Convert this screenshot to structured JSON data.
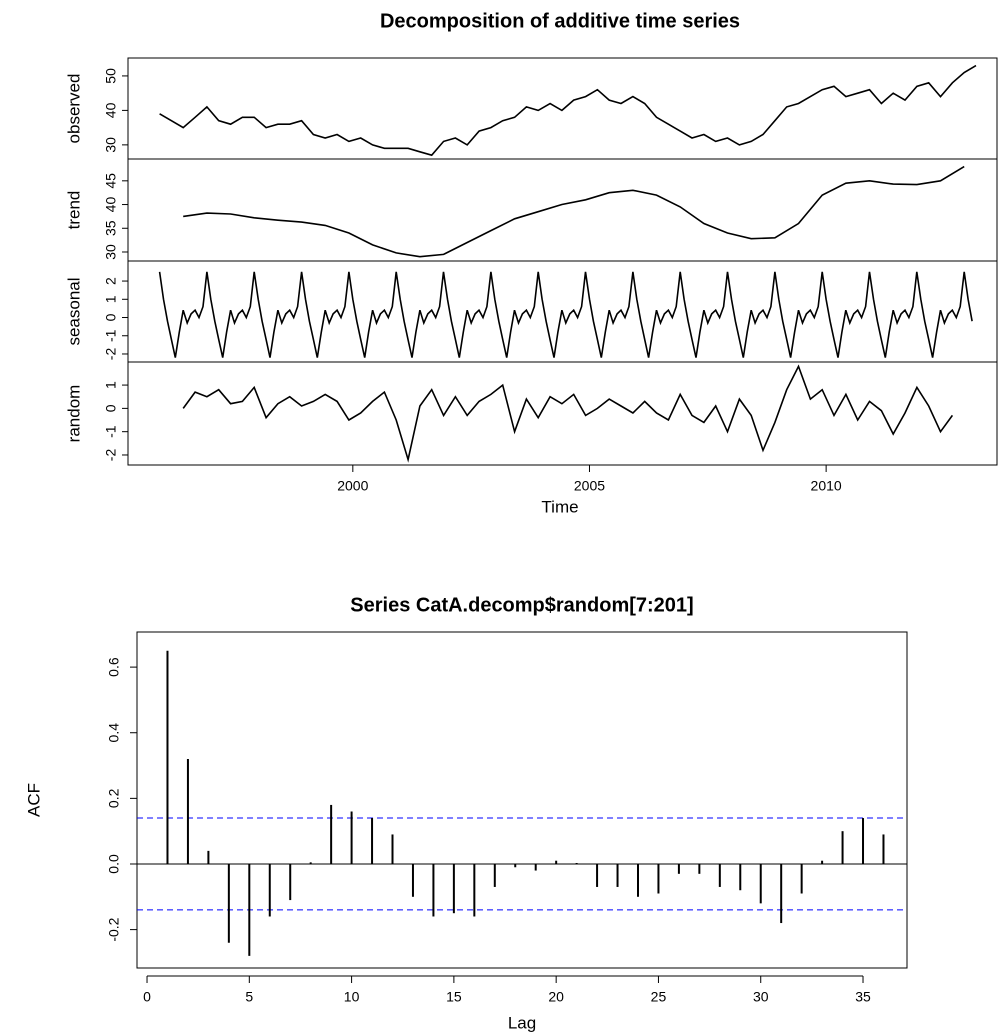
{
  "chart_data": [
    {
      "type": "decomposition",
      "title": "Decomposition of additive time series",
      "xlabel": "Time",
      "xlim": [
        1995.25,
        2013.61
      ],
      "xticks": [
        2000,
        2005,
        2010
      ],
      "color": "#000000",
      "panels": [
        {
          "ylabel": "observed",
          "ylim": [
            25.9,
            55.2
          ],
          "yticks": [
            30,
            40,
            50
          ],
          "x_start": 1995.917,
          "x_step": 0.25,
          "values": [
            39,
            37,
            35,
            38,
            41,
            37,
            36,
            38,
            38,
            35,
            36,
            36,
            37,
            33,
            32,
            33,
            31,
            32,
            30,
            29,
            29,
            29,
            28,
            27,
            31,
            32,
            30,
            34,
            35,
            37,
            38,
            41,
            40,
            42,
            40,
            43,
            44,
            46,
            43,
            42,
            44,
            42,
            38,
            36,
            34,
            32,
            33,
            31,
            32,
            30,
            31,
            33,
            37,
            41,
            42,
            44,
            46,
            47,
            44,
            45,
            46,
            42,
            45,
            43,
            47,
            48,
            44,
            48,
            51,
            53
          ]
        },
        {
          "ylabel": "trend",
          "ylim": [
            28.1,
            49.6
          ],
          "yticks": [
            30,
            35,
            40,
            45
          ],
          "x_start": 1996.417,
          "x_step": 0.5,
          "values": [
            37.5,
            38.2,
            38.0,
            37.2,
            36.7,
            36.3,
            35.6,
            34.0,
            31.5,
            29.8,
            29.0,
            29.5,
            32.0,
            34.5,
            37.0,
            38.5,
            40.0,
            41.0,
            42.5,
            43.0,
            42.0,
            39.5,
            36.0,
            34.0,
            32.8,
            33.0,
            36.0,
            42.0,
            44.5,
            45.0,
            44.3,
            44.2,
            45.0,
            48.0
          ]
        },
        {
          "ylabel": "seasonal",
          "ylim": [
            -2.44,
            3.1
          ],
          "yticks": [
            -2,
            -1,
            0,
            1,
            2
          ],
          "x_start": 1995.917,
          "x_step": 0.08333,
          "values": [
            2.5,
            1.0,
            -0.2,
            -1.2,
            -2.2,
            -0.8,
            0.4,
            -0.3,
            0.2,
            0.4,
            0.0,
            0.6,
            2.5,
            1.0,
            -0.2,
            -1.2,
            -2.2,
            -0.8,
            0.4,
            -0.3,
            0.2,
            0.4,
            0.0,
            0.6,
            2.5,
            1.0,
            -0.2,
            -1.2,
            -2.2,
            -0.8,
            0.4,
            -0.3,
            0.2,
            0.4,
            0.0,
            0.6,
            2.5,
            1.0,
            -0.2,
            -1.2,
            -2.2,
            -0.8,
            0.4,
            -0.3,
            0.2,
            0.4,
            0.0,
            0.6,
            2.5,
            1.0,
            -0.2,
            -1.2,
            -2.2,
            -0.8,
            0.4,
            -0.3,
            0.2,
            0.4,
            0.0,
            0.6,
            2.5,
            1.0,
            -0.2,
            -1.2,
            -2.2,
            -0.8,
            0.4,
            -0.3,
            0.2,
            0.4,
            0.0,
            0.6,
            2.5,
            1.0,
            -0.2,
            -1.2,
            -2.2,
            -0.8,
            0.4,
            -0.3,
            0.2,
            0.4,
            0.0,
            0.6,
            2.5,
            1.0,
            -0.2,
            -1.2,
            -2.2,
            -0.8,
            0.4,
            -0.3,
            0.2,
            0.4,
            0.0,
            0.6,
            2.5,
            1.0,
            -0.2,
            -1.2,
            -2.2,
            -0.8,
            0.4,
            -0.3,
            0.2,
            0.4,
            0.0,
            0.6,
            2.5,
            1.0,
            -0.2,
            -1.2,
            -2.2,
            -0.8,
            0.4,
            -0.3,
            0.2,
            0.4,
            0.0,
            0.6,
            2.5,
            1.0,
            -0.2,
            -1.2,
            -2.2,
            -0.8,
            0.4,
            -0.3,
            0.2,
            0.4,
            0.0,
            0.6,
            2.5,
            1.0,
            -0.2,
            -1.2,
            -2.2,
            -0.8,
            0.4,
            -0.3,
            0.2,
            0.4,
            0.0,
            0.6,
            2.5,
            1.0,
            -0.2,
            -1.2,
            -2.2,
            -0.8,
            0.4,
            -0.3,
            0.2,
            0.4,
            0.0,
            0.6,
            2.5,
            1.0,
            -0.2,
            -1.2,
            -2.2,
            -0.8,
            0.4,
            -0.3,
            0.2,
            0.4,
            0.0,
            0.6,
            2.5,
            1.0,
            -0.2,
            -1.2,
            -2.2,
            -0.8,
            0.4,
            -0.3,
            0.2,
            0.4,
            0.0,
            0.6,
            2.5,
            1.0,
            -0.2,
            -1.2,
            -2.2,
            -0.8,
            0.4,
            -0.3,
            0.2,
            0.4,
            0.0,
            0.6,
            2.5,
            1.0,
            -0.2,
            -1.2,
            -2.2,
            -0.8,
            0.4,
            -0.3,
            0.2,
            0.4,
            0.0,
            0.6,
            2.5,
            1.0,
            -0.2
          ]
        },
        {
          "ylabel": "random",
          "ylim": [
            -2.43,
            1.99
          ],
          "yticks": [
            -2,
            -1,
            0,
            1
          ],
          "x_start": 1996.417,
          "x_step": 0.25,
          "values": [
            0,
            0.7,
            0.5,
            0.8,
            0.2,
            0.3,
            0.9,
            -0.4,
            0.2,
            0.5,
            0.1,
            0.3,
            0.6,
            0.3,
            -0.5,
            -0.2,
            0.3,
            0.7,
            -0.5,
            -2.2,
            0.1,
            0.8,
            -0.3,
            0.5,
            -0.3,
            0.3,
            0.6,
            1.0,
            -1.0,
            0.4,
            -0.4,
            0.5,
            0.2,
            0.6,
            -0.3,
            0.0,
            0.4,
            0.1,
            -0.2,
            0.3,
            -0.2,
            -0.5,
            0.6,
            -0.3,
            -0.6,
            0.1,
            -1.0,
            0.4,
            -0.3,
            -1.8,
            -0.6,
            0.8,
            1.8,
            0.4,
            0.8,
            -0.3,
            0.6,
            -0.5,
            0.3,
            -0.1,
            -1.1,
            -0.2,
            0.9,
            0.1,
            -1.0,
            -0.3
          ]
        }
      ]
    },
    {
      "type": "acf",
      "title": "Series CatA.decomp$random[7:201]",
      "xlabel": "Lag",
      "ylabel": "ACF",
      "xlim": [
        -0.49,
        37.15
      ],
      "ylim": [
        -0.317,
        0.707
      ],
      "xticks": [
        0,
        5,
        10,
        15,
        20,
        25,
        30,
        35
      ],
      "yticks": [
        -0.2,
        {
          "value": 0,
          "label": "0.0"
        },
        0.2,
        0.4,
        0.6
      ],
      "ci_lines": [
        0.14,
        -0.14
      ],
      "ci_color": "#0000ff",
      "color": "#000000",
      "lags": [
        1,
        2,
        3,
        4,
        5,
        6,
        7,
        8,
        9,
        10,
        11,
        12,
        13,
        14,
        15,
        16,
        17,
        18,
        19,
        20,
        21,
        22,
        23,
        24,
        25,
        26,
        27,
        28,
        29,
        30,
        31,
        32,
        33,
        34,
        35,
        36
      ],
      "values": [
        0.65,
        0.32,
        0.04,
        -0.24,
        -0.28,
        -0.16,
        -0.11,
        0.005,
        0.18,
        0.16,
        0.14,
        0.09,
        -0.1,
        -0.16,
        -0.15,
        -0.16,
        -0.07,
        -0.01,
        -0.02,
        0.01,
        0.003,
        -0.07,
        -0.07,
        -0.1,
        -0.09,
        -0.03,
        -0.03,
        -0.07,
        -0.08,
        -0.12,
        -0.18,
        -0.09,
        0.01,
        0.1,
        0.14,
        0.09
      ]
    }
  ]
}
